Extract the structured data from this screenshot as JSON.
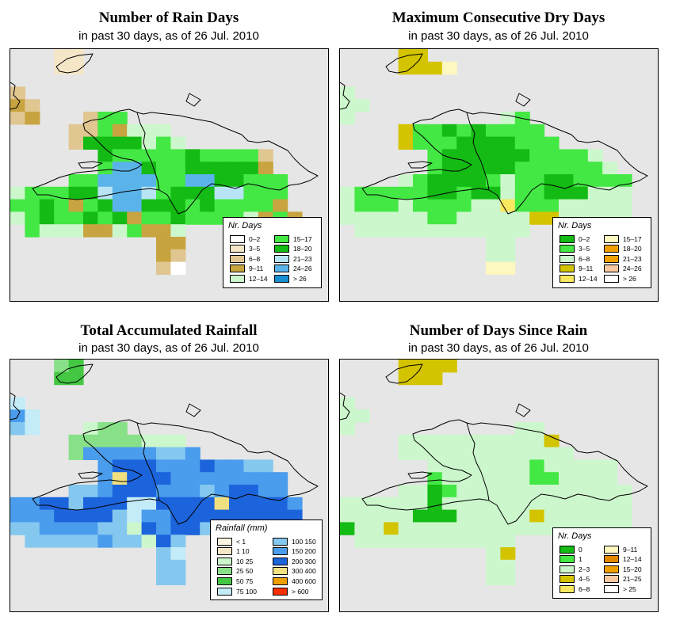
{
  "panels": [
    {
      "id": "rain_days",
      "title": "Number of Rain Days",
      "subtitle": "in past 30 days, as of  26 Jul. 2010",
      "legend": {
        "title": "Nr. Days",
        "items": [
          {
            "label": "0–2",
            "color": "#ffffff"
          },
          {
            "label": "3–5",
            "color": "#f5e6c8"
          },
          {
            "label": "6–8",
            "color": "#e0c690"
          },
          {
            "label": "9–11",
            "color": "#c8a440"
          },
          {
            "label": "12–14",
            "color": "#ccf7cc"
          },
          {
            "label": "15–17",
            "color": "#44e844"
          },
          {
            "label": "18–20",
            "color": "#14bb14"
          },
          {
            "label": "21–23",
            "color": "#b8e4f4"
          },
          {
            "label": "24–26",
            "color": "#5ab4ea"
          },
          {
            "label": "> 26",
            "color": "#1a8fd0"
          }
        ]
      }
    },
    {
      "id": "max_dry",
      "title": "Maximum Consecutive Dry Days",
      "subtitle": "in past 30 days, as of  26 Jul. 2010",
      "legend": {
        "title": "Nr. Days",
        "items": [
          {
            "label": "0–2",
            "color": "#14bb14"
          },
          {
            "label": "3–5",
            "color": "#44e844"
          },
          {
            "label": "6–8",
            "color": "#ccf7cc"
          },
          {
            "label": "9–11",
            "color": "#d4c400"
          },
          {
            "label": "12–14",
            "color": "#f8e860"
          },
          {
            "label": "15–17",
            "color": "#fcf8c0"
          },
          {
            "label": "18–20",
            "color": "#f0a000"
          },
          {
            "label": "21–23",
            "color": "#f0a000"
          },
          {
            "label": "24–26",
            "color": "#f8c8a0"
          },
          {
            "label": "> 26",
            "color": "#ffffff"
          }
        ]
      }
    },
    {
      "id": "total_rain",
      "title": "Total Accumulated Rainfall",
      "subtitle": "in past 30 days, as of  26 Jul. 2010",
      "legend": {
        "title": "Rainfall (mm)",
        "items": [
          {
            "label": "< 1",
            "color": "#fcf4e0"
          },
          {
            "label": "1   10",
            "color": "#f5e6c8"
          },
          {
            "label": "10   25",
            "color": "#ccf7cc"
          },
          {
            "label": "25   50",
            "color": "#88e088"
          },
          {
            "label": "50   75",
            "color": "#44c844"
          },
          {
            "label": "75   100",
            "color": "#c4ecf8"
          },
          {
            "label": "100   150",
            "color": "#84c8f0"
          },
          {
            "label": "150   200",
            "color": "#4a9cec"
          },
          {
            "label": "200   300",
            "color": "#1c64dc"
          },
          {
            "label": "300   400",
            "color": "#f0e080"
          },
          {
            "label": "400   600",
            "color": "#f0a000"
          },
          {
            "label": "> 600",
            "color": "#f83000"
          }
        ]
      }
    },
    {
      "id": "days_since",
      "title": "Number of Days Since Rain",
      "subtitle": "in past 30 days, as of  26 Jul. 2010",
      "legend": {
        "title": "Nr. Days",
        "items": [
          {
            "label": "0",
            "color": "#14bb14"
          },
          {
            "label": "1",
            "color": "#44e844"
          },
          {
            "label": "2–3",
            "color": "#ccf7cc"
          },
          {
            "label": "4–5",
            "color": "#d4c400"
          },
          {
            "label": "6–8",
            "color": "#f8e860"
          },
          {
            "label": "9–11",
            "color": "#fcf8c0"
          },
          {
            "label": "12–14",
            "color": "#e08800"
          },
          {
            "label": "15–20",
            "color": "#f0a000"
          },
          {
            "label": "21–25",
            "color": "#f8c8a0"
          },
          {
            "label": "> 25",
            "color": "#ffffff"
          }
        ]
      }
    }
  ]
}
